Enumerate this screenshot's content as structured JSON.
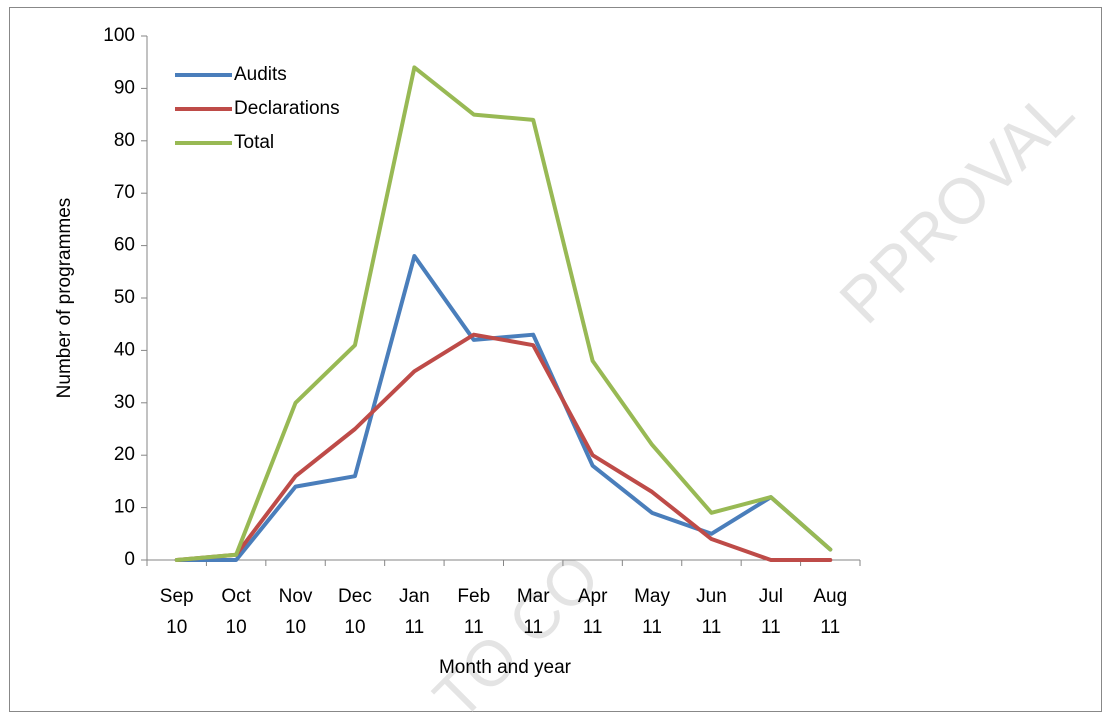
{
  "chart_data": {
    "type": "line",
    "x_label": "Month and year",
    "y_label": "Number of programmes",
    "categories": [
      "Sep 10",
      "Oct 10",
      "Nov 10",
      "Dec 10",
      "Jan 11",
      "Feb 11",
      "Mar 11",
      "Apr 11",
      "May 11",
      "Jun 11",
      "Jul 11",
      "Aug 11"
    ],
    "series": [
      {
        "name": "Audits",
        "color": "#4a7ebb",
        "values": [
          0,
          0,
          14,
          16,
          58,
          42,
          43,
          18,
          9,
          5,
          12,
          2
        ]
      },
      {
        "name": "Declarations",
        "color": "#be4b48",
        "values": [
          0,
          1,
          16,
          25,
          36,
          43,
          41,
          20,
          13,
          4,
          0,
          0
        ]
      },
      {
        "name": "Total",
        "color": "#98b954",
        "values": [
          0,
          1,
          30,
          41,
          94,
          85,
          84,
          38,
          22,
          9,
          12,
          2
        ]
      }
    ],
    "ylim": [
      0,
      100
    ],
    "yticks": [
      0,
      10,
      20,
      30,
      40,
      50,
      60,
      70,
      80,
      90,
      100
    ],
    "legend": "upper left",
    "watermark": [
      "TO CO",
      "PPROVAL"
    ]
  }
}
